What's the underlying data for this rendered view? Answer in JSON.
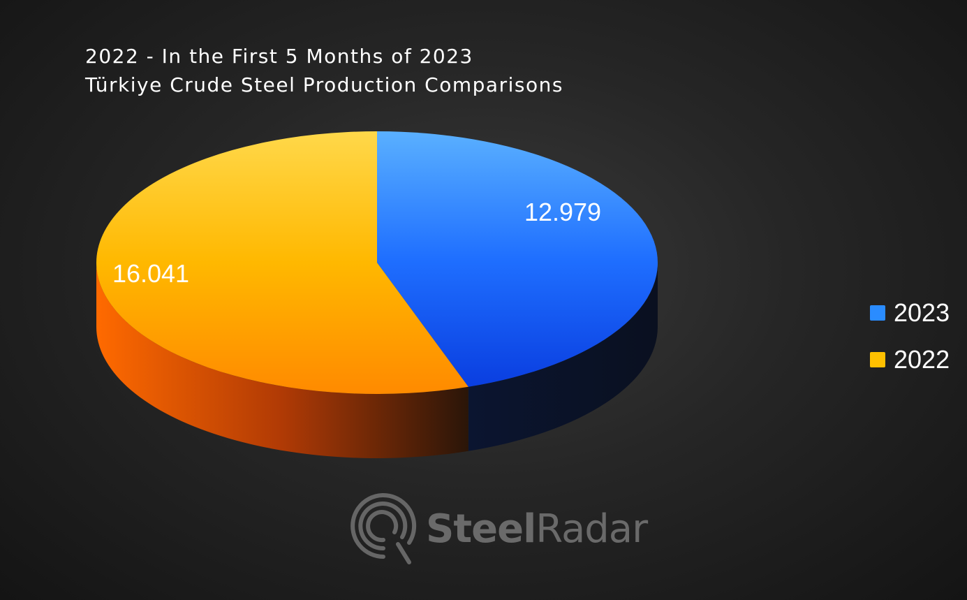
{
  "title": {
    "line1": "2022 - In the First 5 Months of 2023",
    "line2": "Türkiye Crude Steel Production Comparisons"
  },
  "chart_data": {
    "type": "pie",
    "title": "2022 - In the First 5 Months of 2023 Türkiye Crude Steel Production Comparisons",
    "categories": [
      "2023",
      "2022"
    ],
    "values": [
      12.979,
      16.041
    ],
    "labels": [
      "12.979",
      "16.041"
    ],
    "colors": [
      "#1f6fff",
      "#ffb000"
    ],
    "legend_position": "right",
    "style": "3d"
  },
  "legend": {
    "items": [
      {
        "label": "2023",
        "color": "#2a8cff"
      },
      {
        "label": "2022",
        "color": "#ffc000"
      }
    ]
  },
  "watermark": {
    "text_bold": "Steel",
    "text_light": "Radar",
    "icon": "radar-logo-icon"
  }
}
